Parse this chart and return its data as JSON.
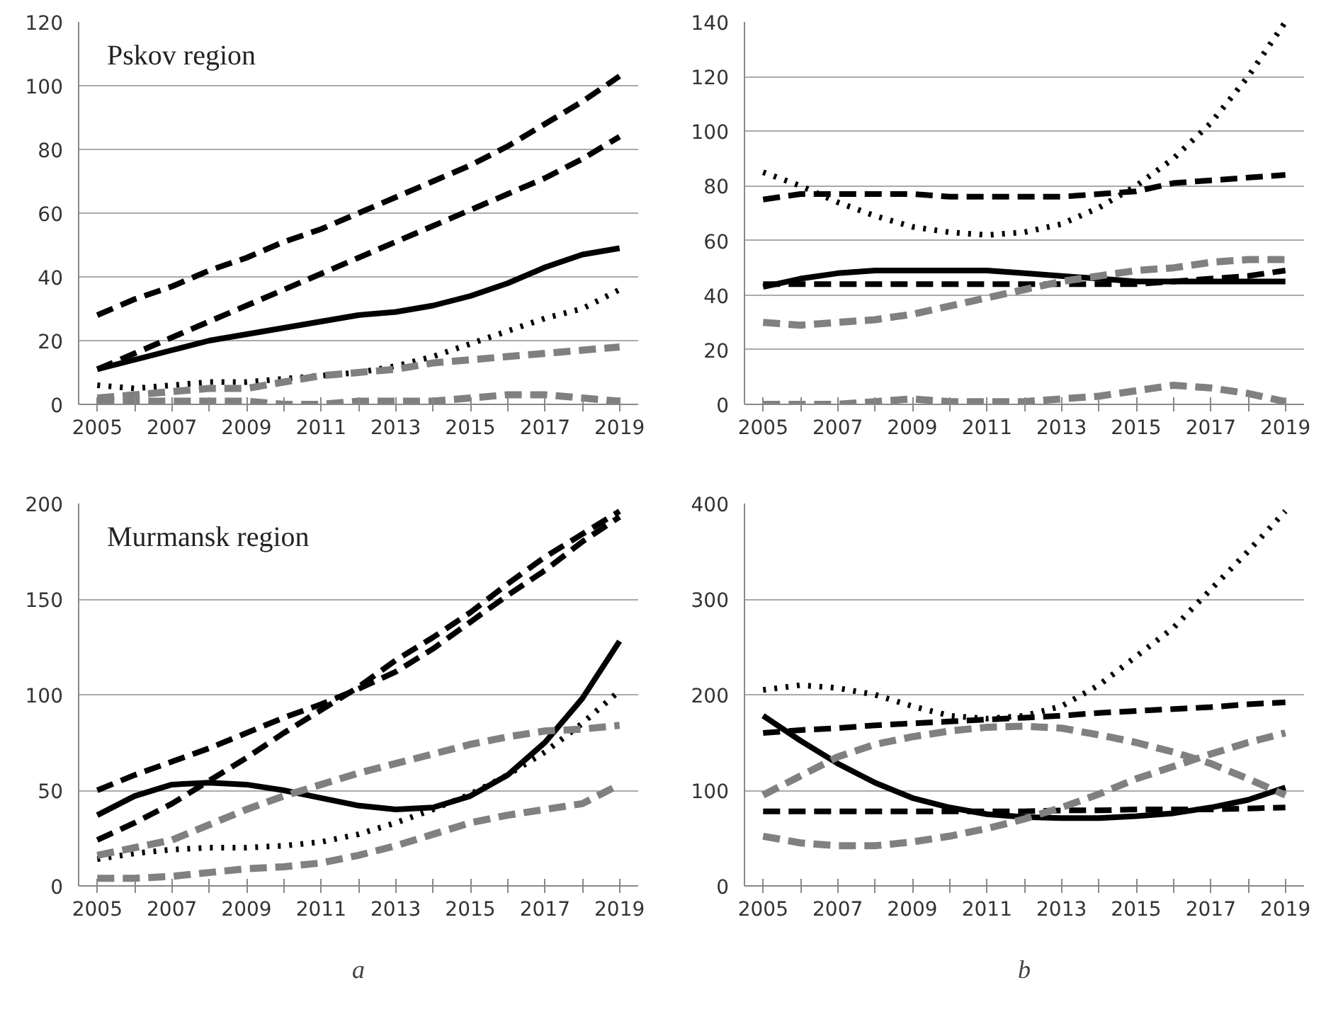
{
  "chart_data": [
    {
      "type": "line",
      "title": "Pskov region",
      "categories": [
        "2005",
        null,
        "2007",
        null,
        "2009",
        null,
        "2011",
        null,
        "2013",
        null,
        "2015",
        null,
        "2017",
        null,
        "2019"
      ],
      "ylim": [
        0,
        120
      ],
      "yticks": [
        0,
        20,
        40,
        60,
        80,
        100,
        120
      ],
      "grid": "y",
      "series": [
        {
          "color": "#000000",
          "line_style": "dashed",
          "values": [
            28,
            33,
            37,
            42,
            46,
            51,
            55,
            60,
            65,
            70,
            75,
            81,
            88,
            95,
            103
          ]
        },
        {
          "color": "#000000",
          "line_style": "dashed",
          "values": [
            11,
            16,
            21,
            26,
            31,
            36,
            41,
            46,
            51,
            56,
            61,
            66,
            71,
            77,
            84
          ]
        },
        {
          "color": "#000000",
          "line_style": "solid",
          "values": [
            11,
            14,
            17,
            20,
            22,
            24,
            26,
            28,
            29,
            31,
            34,
            38,
            43,
            47,
            49
          ]
        },
        {
          "color": "#000000",
          "line_style": "dotted",
          "values": [
            6,
            5,
            6,
            7,
            7,
            8,
            9,
            10,
            12,
            15,
            19,
            23,
            27,
            30,
            36
          ]
        },
        {
          "color": "#808080",
          "line_style": "dashed",
          "values": [
            2,
            3,
            4,
            5,
            5,
            7,
            9,
            10,
            11,
            13,
            14,
            15,
            16,
            17,
            18
          ]
        },
        {
          "color": "#808080",
          "line_style": "dashed",
          "values": [
            1,
            1,
            1,
            1,
            1,
            0,
            0,
            1,
            1,
            1,
            2,
            3,
            3,
            2,
            1
          ]
        }
      ]
    },
    {
      "type": "line",
      "categories": [
        "2005",
        null,
        "2007",
        null,
        "2009",
        null,
        "2011",
        null,
        "2013",
        null,
        "2015",
        null,
        "2017",
        null,
        "2019"
      ],
      "ylim": [
        0,
        140
      ],
      "yticks": [
        0,
        20,
        40,
        60,
        80,
        100,
        120,
        140
      ],
      "grid": "y",
      "series": [
        {
          "color": "#000000",
          "line_style": "dotted",
          "values": [
            85,
            80,
            74,
            69,
            65,
            63,
            62,
            63,
            66,
            72,
            80,
            90,
            103,
            120,
            140
          ]
        },
        {
          "color": "#000000",
          "line_style": "dashed",
          "values": [
            75,
            77,
            77,
            77,
            77,
            76,
            76,
            76,
            76,
            77,
            78,
            81,
            82,
            83,
            84
          ]
        },
        {
          "color": "#000000",
          "line_style": "solid",
          "values": [
            43,
            46,
            48,
            49,
            49,
            49,
            49,
            48,
            47,
            46,
            45,
            45,
            45,
            45,
            45
          ]
        },
        {
          "color": "#000000",
          "line_style": "dashed",
          "values": [
            44,
            44,
            44,
            44,
            44,
            44,
            44,
            44,
            44,
            44,
            44,
            45,
            46,
            47,
            49
          ]
        },
        {
          "color": "#808080",
          "line_style": "dashed",
          "values": [
            30,
            29,
            30,
            31,
            33,
            36,
            39,
            42,
            45,
            47,
            49,
            50,
            52,
            53,
            53
          ]
        },
        {
          "color": "#808080",
          "line_style": "dashed",
          "values": [
            0,
            0,
            0,
            1,
            2,
            1,
            1,
            1,
            2,
            3,
            5,
            7,
            6,
            4,
            1
          ]
        }
      ]
    },
    {
      "type": "line",
      "title": "Murmansk region",
      "annotations": [
        "a"
      ],
      "categories": [
        "2005",
        null,
        "2007",
        null,
        "2009",
        null,
        "2011",
        null,
        "2013",
        null,
        "2015",
        null,
        "2017",
        null,
        "2019"
      ],
      "ylim": [
        0,
        200
      ],
      "yticks": [
        0,
        50,
        100,
        150,
        200
      ],
      "grid": "y",
      "series": [
        {
          "color": "#000000",
          "line_style": "dashed",
          "values": [
            50,
            58,
            65,
            72,
            80,
            88,
            95,
            103,
            112,
            124,
            138,
            152,
            165,
            180,
            193
          ]
        },
        {
          "color": "#000000",
          "line_style": "dashed",
          "values": [
            24,
            33,
            43,
            55,
            67,
            80,
            92,
            104,
            118,
            130,
            143,
            158,
            172,
            184,
            196
          ]
        },
        {
          "color": "#000000",
          "line_style": "solid",
          "values": [
            37,
            47,
            53,
            54,
            53,
            50,
            46,
            42,
            40,
            41,
            47,
            58,
            75,
            98,
            128
          ]
        },
        {
          "color": "#000000",
          "line_style": "dotted",
          "values": [
            14,
            17,
            19,
            20,
            20,
            21,
            23,
            27,
            33,
            40,
            48,
            58,
            70,
            85,
            102
          ]
        },
        {
          "color": "#808080",
          "line_style": "dashed",
          "values": [
            16,
            20,
            24,
            32,
            40,
            47,
            53,
            59,
            64,
            69,
            74,
            78,
            81,
            82,
            84
          ]
        },
        {
          "color": "#808080",
          "line_style": "dashed",
          "values": [
            4,
            4,
            5,
            7,
            9,
            10,
            12,
            16,
            21,
            27,
            33,
            37,
            40,
            43,
            53
          ]
        }
      ]
    },
    {
      "type": "line",
      "annotations": [
        "b"
      ],
      "categories": [
        "2005",
        null,
        "2007",
        null,
        "2009",
        null,
        "2011",
        null,
        "2013",
        null,
        "2015",
        null,
        "2017",
        null,
        "2019"
      ],
      "ylim": [
        0,
        400
      ],
      "yticks": [
        0,
        100,
        200,
        300,
        400
      ],
      "grid": "y",
      "series": [
        {
          "color": "#000000",
          "line_style": "dotted",
          "values": [
            205,
            210,
            207,
            200,
            188,
            178,
            175,
            178,
            188,
            210,
            240,
            270,
            310,
            350,
            392
          ]
        },
        {
          "color": "#000000",
          "line_style": "dashed",
          "values": [
            160,
            163,
            165,
            168,
            170,
            172,
            174,
            176,
            178,
            181,
            183,
            185,
            187,
            190,
            192
          ]
        },
        {
          "color": "#000000",
          "line_style": "solid",
          "values": [
            178,
            152,
            128,
            108,
            92,
            82,
            75,
            72,
            71,
            71,
            73,
            76,
            82,
            90,
            103
          ]
        },
        {
          "color": "#000000",
          "line_style": "dashed",
          "values": [
            78,
            78,
            78,
            78,
            78,
            78,
            78,
            78,
            79,
            79,
            80,
            80,
            80,
            81,
            82
          ]
        },
        {
          "color": "#808080",
          "line_style": "dashed",
          "values": [
            95,
            115,
            135,
            148,
            156,
            162,
            166,
            167,
            165,
            158,
            150,
            140,
            128,
            112,
            95
          ]
        },
        {
          "color": "#808080",
          "line_style": "dashed",
          "values": [
            52,
            45,
            42,
            42,
            46,
            52,
            60,
            70,
            82,
            96,
            112,
            125,
            138,
            150,
            160
          ]
        }
      ]
    }
  ]
}
